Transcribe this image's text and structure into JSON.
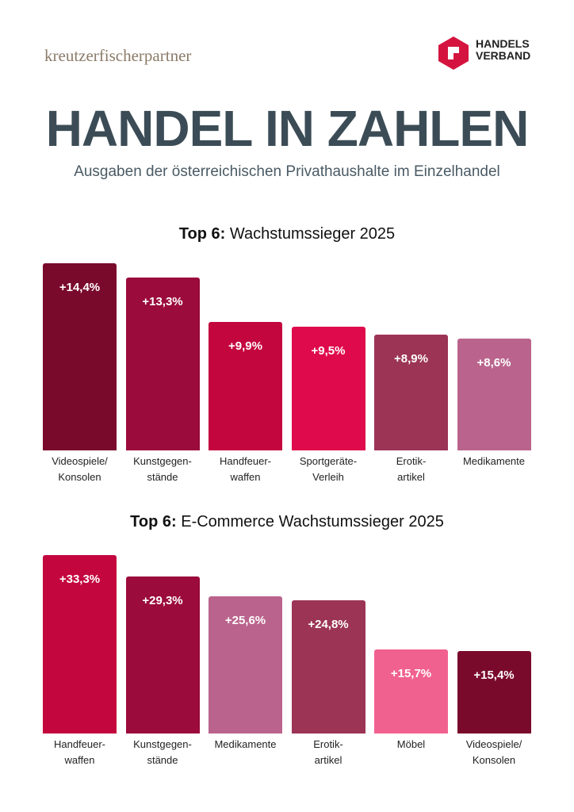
{
  "header": {
    "brand_left": "kreutzerfischerpartner",
    "brand_right": "HANDELS\nVERBAND",
    "title": "HANDEL IN ZAHLEN",
    "subtitle": "Ausgaben der österreichischen Privathaushalte im Einzelhandel"
  },
  "chart_data": [
    {
      "type": "bar",
      "title_prefix": "Top 6:",
      "title": "Wachstumssieger 2025",
      "categories": [
        "Videospiele/\nKonsolen",
        "Kunstgegen-\nstände",
        "Handfeuer-\nwaffen",
        "Sportgeräte-\nVerleih",
        "Erotik-\nartikel",
        "Medikamente"
      ],
      "values": [
        14.4,
        13.3,
        9.9,
        9.5,
        8.9,
        8.6
      ],
      "value_labels": [
        "+14,4%",
        "+13,3%",
        "+9,9%",
        "+9,5%",
        "+8,9%",
        "+8,6%"
      ],
      "colors": [
        "#7a0a2c",
        "#9b0b3b",
        "#c4063f",
        "#df0a4b",
        "#9c3456",
        "#ba648d"
      ]
    },
    {
      "type": "bar",
      "title_prefix": "Top 6:",
      "title": "E-Commerce Wachstumssieger 2025",
      "categories": [
        "Handfeuer-\nwaffen",
        "Kunstgegen-\nstände",
        "Medikamente",
        "Erotik-\nartikel",
        "Möbel",
        "Videospiele/\nKonsolen"
      ],
      "values": [
        33.3,
        29.3,
        25.6,
        24.8,
        15.7,
        15.4
      ],
      "value_labels": [
        "+33,3%",
        "+29,3%",
        "+25,6%",
        "+24,8%",
        "+15,7%",
        "+15,4%"
      ],
      "colors": [
        "#c4063f",
        "#9b0b3b",
        "#ba648d",
        "#9c3456",
        "#f1618f",
        "#7a0a2c"
      ]
    }
  ]
}
